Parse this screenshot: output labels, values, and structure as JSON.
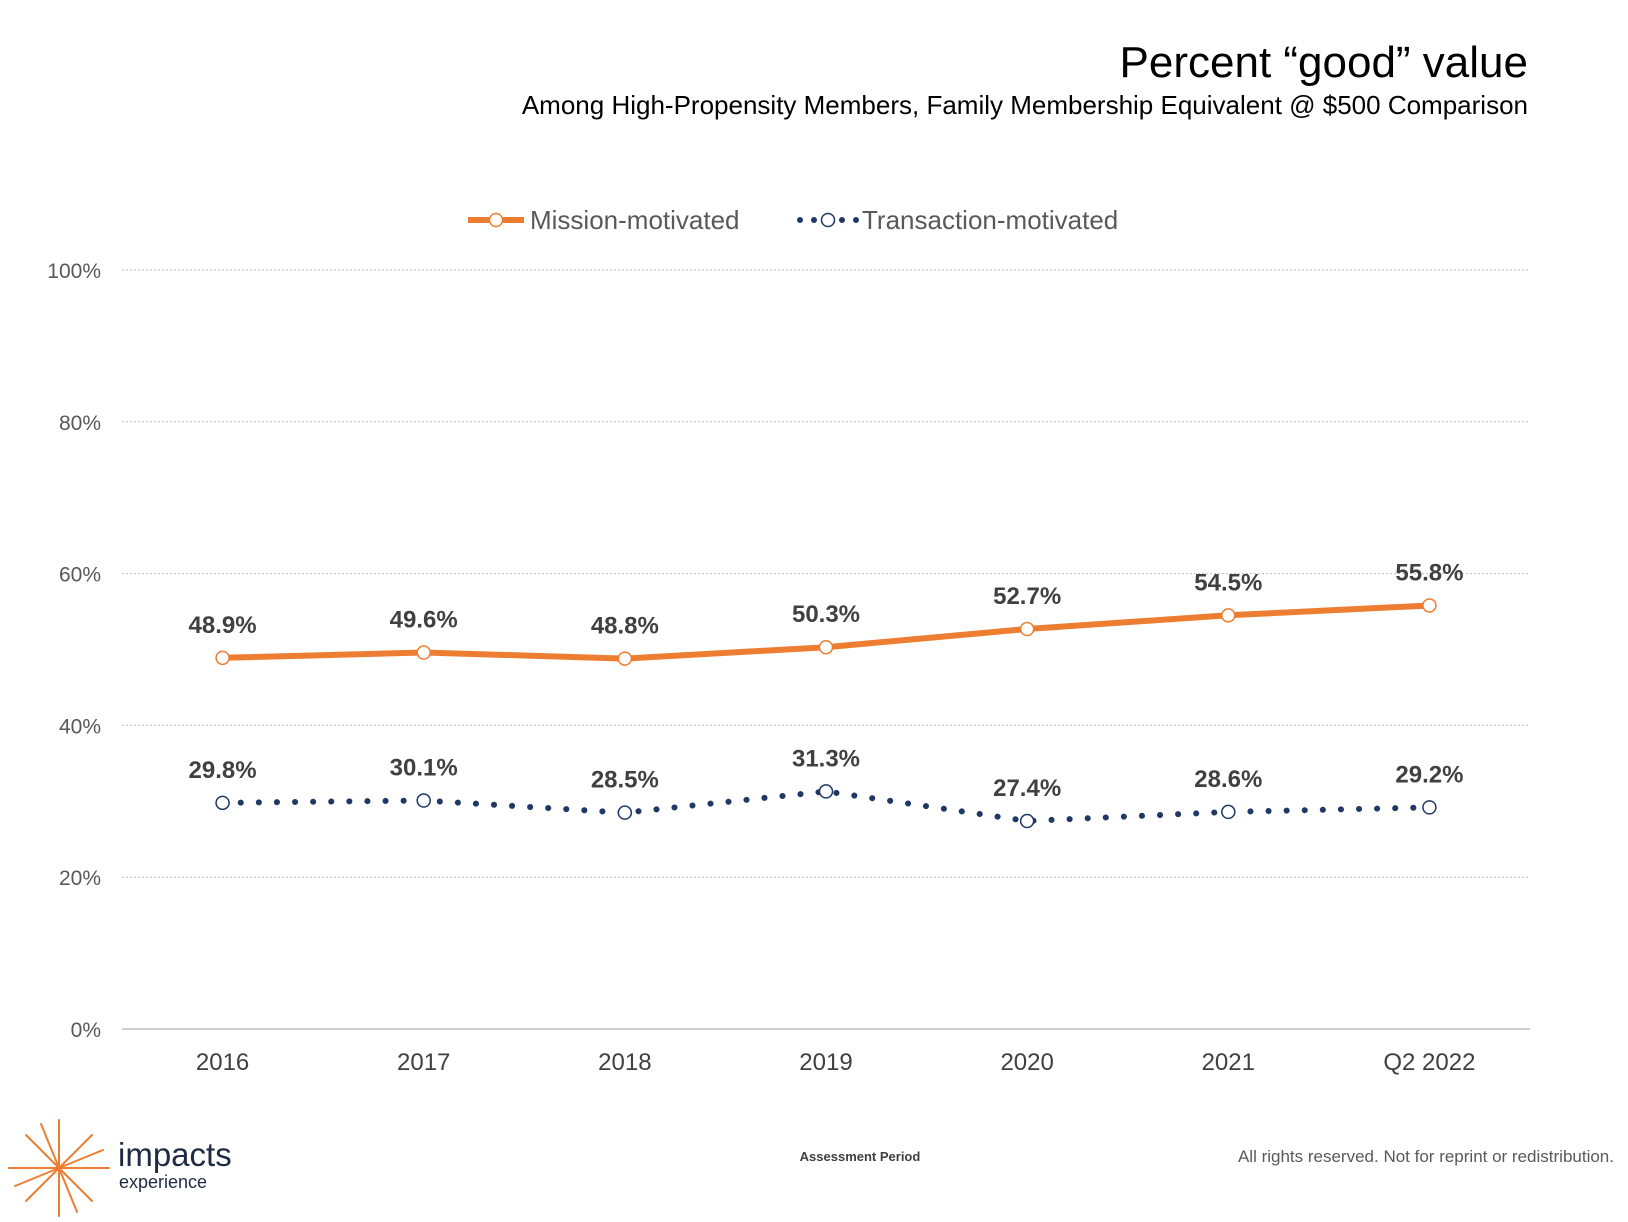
{
  "header": {
    "title": "Percent “good” value",
    "subtitle": "Among High-Propensity Members, Family Membership Equivalent @ $500 Comparison"
  },
  "footer": {
    "rights": "All rights reserved. Not for reprint or redistribution."
  },
  "logo": {
    "word": "impacts",
    "sub": "experience"
  },
  "colors": {
    "mission": "#ED7D31",
    "transaction": "#1F3864",
    "grid": "#BFBFBF",
    "axis": "#BFBFBF"
  },
  "chart_data": {
    "type": "line",
    "title": "Percent “good” value",
    "subtitle": "Among High-Propensity Members, Family Membership Equivalent @ $500 Comparison",
    "xlabel": "Assessment Period",
    "ylabel": "",
    "categories": [
      "2016",
      "2017",
      "2018",
      "2019",
      "2020",
      "2021",
      "Q2 2022"
    ],
    "ylim": [
      0,
      100
    ],
    "yticks": [
      "0%",
      "20%",
      "40%",
      "60%",
      "80%",
      "100%"
    ],
    "grid": true,
    "legend": "top-center",
    "series": [
      {
        "name": "Mission-motivated",
        "style": "solid",
        "color": "#ED7D31",
        "values": [
          48.9,
          49.6,
          48.8,
          50.3,
          52.7,
          54.5,
          55.8
        ],
        "labels": [
          "48.9%",
          "49.6%",
          "48.8%",
          "50.3%",
          "52.7%",
          "54.5%",
          "55.8%"
        ]
      },
      {
        "name": "Transaction-motivated",
        "style": "dotted",
        "color": "#1F3864",
        "values": [
          29.8,
          30.1,
          28.5,
          31.3,
          27.4,
          28.6,
          29.2
        ],
        "labels": [
          "29.8%",
          "30.1%",
          "28.5%",
          "31.3%",
          "27.4%",
          "28.6%",
          "29.2%"
        ]
      }
    ]
  }
}
